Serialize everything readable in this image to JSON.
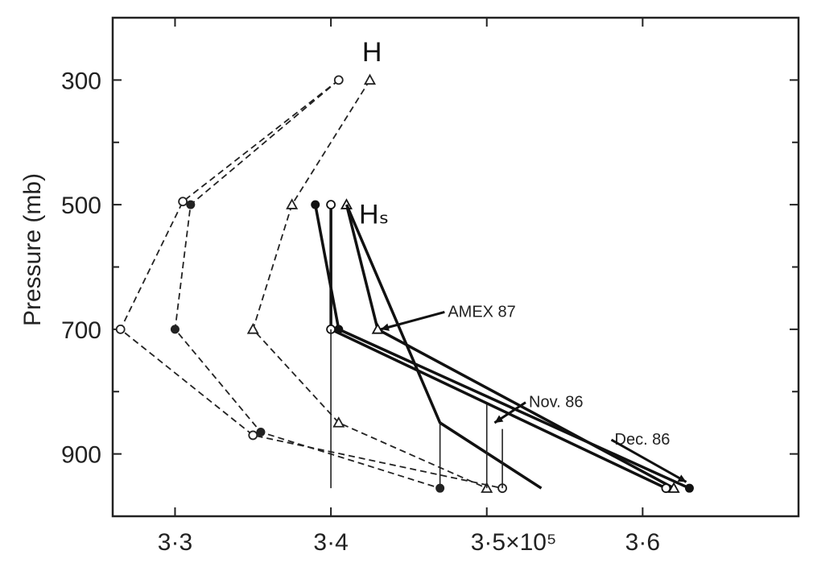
{
  "chart_data": {
    "type": "line",
    "xlabel": "",
    "ylabel": "Pressure (mb)",
    "xlim": [
      3.26,
      3.7
    ],
    "ylim": [
      1000,
      200
    ],
    "x_ticks": [
      {
        "value": 3.3,
        "label": "3·3"
      },
      {
        "value": 3.4,
        "label": "3·4"
      },
      {
        "value": 3.5,
        "label": "3·5×10⁵"
      },
      {
        "value": 3.6,
        "label": "3·6"
      }
    ],
    "y_ticks": [
      {
        "value": 300,
        "label": "300"
      },
      {
        "value": 500,
        "label": "500"
      },
      {
        "value": 700,
        "label": "700"
      },
      {
        "value": 900,
        "label": "900"
      }
    ],
    "y_minor_ticks": [
      400,
      600,
      800
    ],
    "grid": false,
    "series": [
      {
        "group": "H",
        "style": "dashed",
        "marker": "open-triangle",
        "color": "#222222",
        "x": [
          3.425,
          3.375,
          3.35,
          3.405,
          3.5
        ],
        "y": [
          300,
          500,
          700,
          850,
          955
        ]
      },
      {
        "group": "H",
        "style": "dashed",
        "marker": "filled-circle",
        "color": "#222222",
        "x": [
          3.405,
          3.31,
          3.3,
          3.355,
          3.47
        ],
        "y": [
          300,
          500,
          700,
          865,
          955
        ]
      },
      {
        "group": "H",
        "style": "dashed",
        "marker": "open-circle",
        "color": "#222222",
        "x": [
          3.405,
          3.305,
          3.265,
          3.35,
          3.51
        ],
        "y": [
          300,
          495,
          700,
          870,
          955
        ]
      },
      {
        "group": "Hs",
        "style": "solid",
        "marker": "open-triangle",
        "color": "#111111",
        "x": [
          3.41,
          3.43,
          3.62
        ],
        "y": [
          500,
          700,
          955
        ]
      },
      {
        "group": "Hs",
        "style": "solid",
        "marker": "filled-circle",
        "color": "#111111",
        "x": [
          3.39,
          3.405,
          3.63
        ],
        "y": [
          500,
          700,
          955
        ]
      },
      {
        "group": "Hs",
        "style": "solid",
        "marker": "open-circle",
        "color": "#111111",
        "x": [
          3.4,
          3.4,
          3.615
        ],
        "y": [
          500,
          700,
          955
        ]
      },
      {
        "group": "Hs",
        "style": "solid",
        "marker": "none",
        "color": "#111111",
        "x": [
          3.41,
          3.47,
          3.535
        ],
        "y": [
          500,
          850,
          955
        ]
      }
    ],
    "annotations": [
      {
        "text": "H",
        "x": 3.42,
        "y": 270
      },
      {
        "text": "Hₛ",
        "x": 3.418,
        "y": 530
      },
      {
        "text": "AMEX 87",
        "x": 3.475,
        "y": 680,
        "arrow_to": [
          3.432,
          700
        ]
      },
      {
        "text": "Nov. 86",
        "x": 3.527,
        "y": 825,
        "arrow_to": [
          3.505,
          850
        ]
      },
      {
        "text": "Dec. 86",
        "x": 3.582,
        "y": 885,
        "arrow_to": [
          3.628,
          945
        ]
      }
    ]
  }
}
